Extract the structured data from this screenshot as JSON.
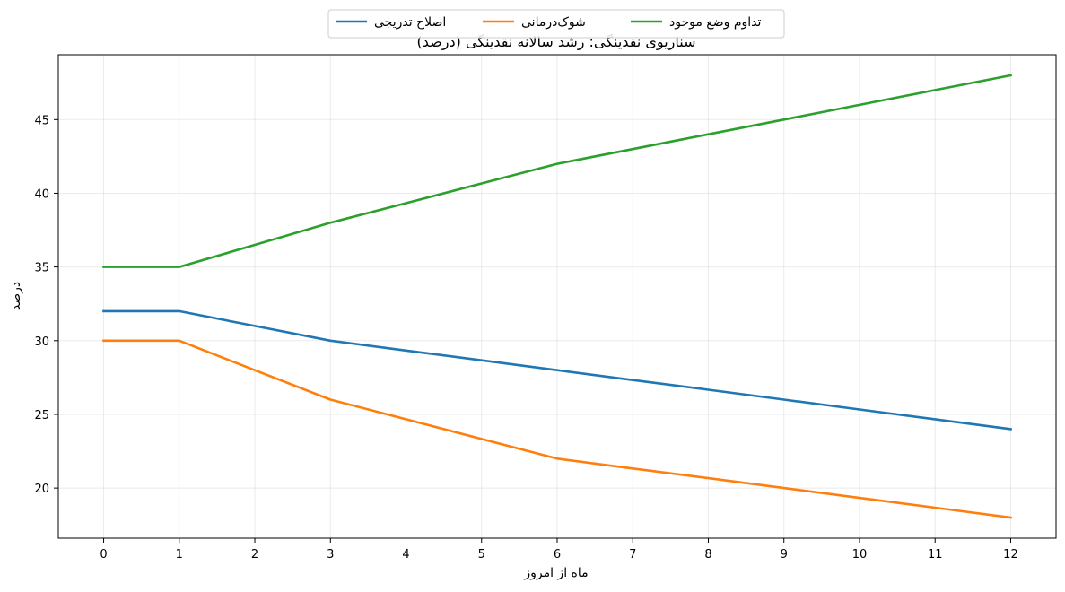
{
  "chart_data": {
    "type": "line",
    "title": "سناریوی نقدینگی: رشد سالانه نقدینگی (درصد)",
    "xlabel": "ماه از امروز",
    "ylabel": "درصد",
    "x": [
      0,
      1,
      2,
      3,
      4,
      5,
      6,
      7,
      8,
      9,
      10,
      11,
      12
    ],
    "xlim": [
      -0.6,
      12.6
    ],
    "ylim": [
      16.6,
      49.4
    ],
    "xticks": [
      0,
      1,
      2,
      3,
      4,
      5,
      6,
      7,
      8,
      9,
      10,
      11,
      12
    ],
    "yticks": [
      20,
      25,
      30,
      35,
      40,
      45
    ],
    "grid": true,
    "legend_position": "top-center",
    "series": [
      {
        "name": "اصلاح تدریجی",
        "color": "#1f77b4",
        "values": [
          32,
          32,
          31,
          30,
          29.33,
          28.67,
          28,
          27.33,
          26.67,
          26,
          25.33,
          24.67,
          24
        ]
      },
      {
        "name": "شوک‌درمانی",
        "color": "#ff7f0e",
        "values": [
          30,
          30,
          28,
          26,
          24.67,
          23.33,
          22,
          21.33,
          20.67,
          20,
          19.33,
          18.67,
          18
        ]
      },
      {
        "name": "تداوم وضع موجود",
        "color": "#2ca02c",
        "values": [
          35,
          35,
          36.5,
          38,
          39.33,
          40.67,
          42,
          43,
          44,
          45,
          46,
          47,
          48
        ]
      }
    ]
  }
}
